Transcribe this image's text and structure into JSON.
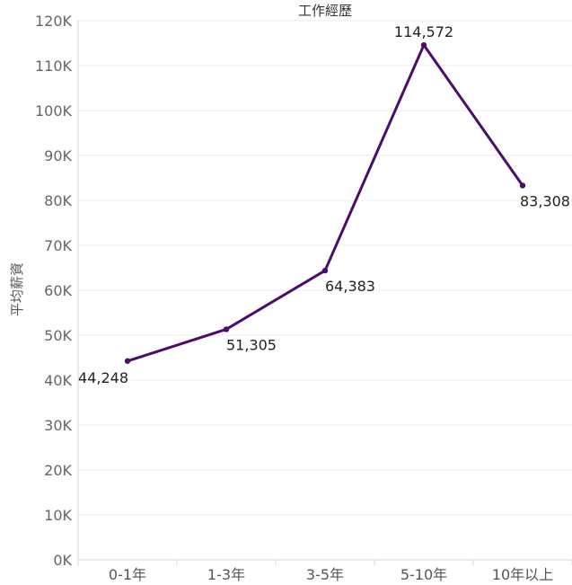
{
  "chart_data": {
    "type": "line",
    "title": "工作經歷",
    "xlabel": "工作經歷",
    "ylabel": "平均薪資",
    "categories": [
      "0-1年",
      "1-3年",
      "3-5年",
      "5-10年",
      "10年以上"
    ],
    "values": [
      44248,
      51305,
      64383,
      114572,
      83308
    ],
    "data_labels": [
      "44,248",
      "51,305",
      "64,383",
      "114,572",
      "83,308"
    ],
    "ylim": [
      0,
      120000
    ],
    "y_ticks": [
      0,
      10000,
      20000,
      30000,
      40000,
      50000,
      60000,
      70000,
      80000,
      90000,
      100000,
      110000,
      120000
    ],
    "y_tick_labels": [
      "0K",
      "10K",
      "20K",
      "30K",
      "40K",
      "50K",
      "60K",
      "70K",
      "80K",
      "90K",
      "100K",
      "110K",
      "120K"
    ],
    "line_color": "#4b0c6b",
    "grid": true,
    "legend": "none"
  }
}
